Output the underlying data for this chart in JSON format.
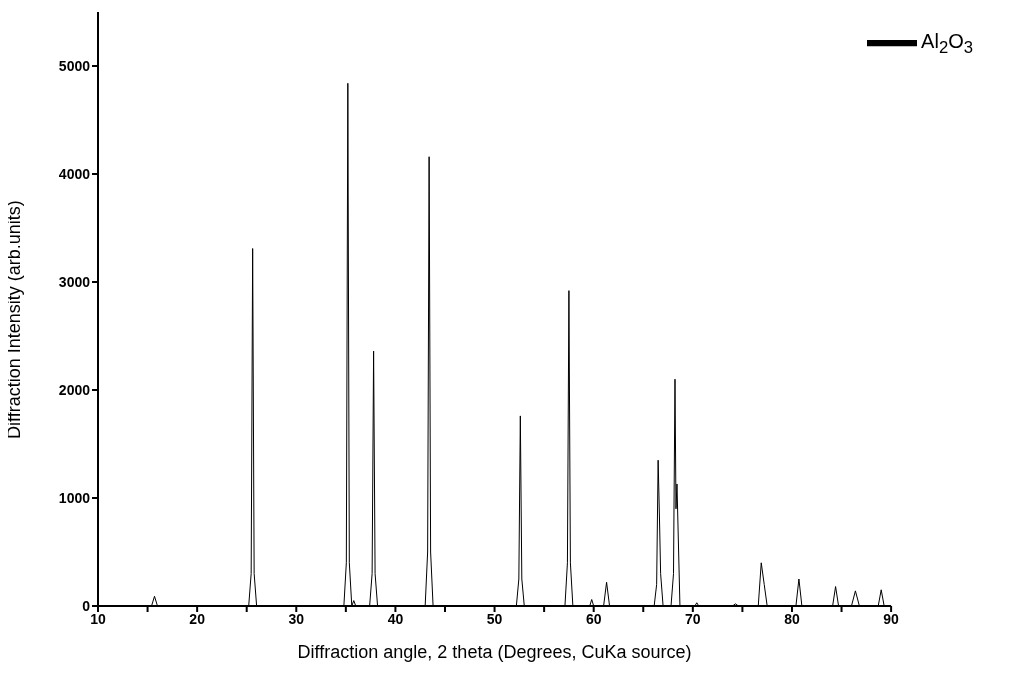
{
  "chart_data": {
    "type": "line",
    "xlabel": "Diffraction angle, 2 theta (Degrees, CuKa source)",
    "ylabel": "Diffraction Intensity (arb.units)",
    "xlim": [
      10,
      90
    ],
    "xticks": [
      10,
      {
        "value": 15,
        "label": null
      },
      20,
      {
        "value": 25,
        "label": null
      },
      30,
      {
        "value": 35,
        "label": null
      },
      40,
      {
        "value": 45,
        "label": null
      },
      50,
      {
        "value": 55,
        "label": null
      },
      60,
      {
        "value": 65,
        "label": null
      },
      70,
      {
        "value": 75,
        "label": null
      },
      80,
      {
        "value": 85,
        "label": null
      },
      90
    ],
    "ylim": [
      0,
      5500
    ],
    "yticks": [
      0,
      1000,
      2000,
      3000,
      4000,
      5000
    ],
    "legend": "top right",
    "marker": "none",
    "x": [
      10,
      15.4,
      15.7,
      16.0,
      25.2,
      25.45,
      25.6,
      25.75,
      26.0,
      34.8,
      35.05,
      35.2,
      35.35,
      35.6,
      35.8,
      36.0,
      37.4,
      37.65,
      37.8,
      37.95,
      38.2,
      43.0,
      43.25,
      43.4,
      43.55,
      43.8,
      52.2,
      52.45,
      52.6,
      52.75,
      53.0,
      57.1,
      57.35,
      57.5,
      57.65,
      57.9,
      59.6,
      59.8,
      60.0,
      61.0,
      61.3,
      61.6,
      66.1,
      66.35,
      66.5,
      66.65,
      66.75,
      67.0,
      67.8,
      68.05,
      68.2,
      68.3,
      68.4,
      68.7,
      70.2,
      70.4,
      70.6,
      74.0,
      74.3,
      74.6,
      76.6,
      76.9,
      77.2,
      77.5,
      80.4,
      80.7,
      81.0,
      84.1,
      84.4,
      84.7,
      86.0,
      86.4,
      86.8,
      88.7,
      89.0,
      89.3,
      90
    ],
    "series": [
      {
        "name": "Al$_{2}$O$_{3}$",
        "color": "#000000",
        "values": [
          0,
          0,
          90,
          0,
          0,
          300,
          3310,
          300,
          0,
          0,
          400,
          4840,
          400,
          0,
          50,
          0,
          0,
          300,
          2360,
          300,
          0,
          0,
          500,
          4160,
          500,
          0,
          0,
          250,
          1760,
          250,
          0,
          0,
          400,
          2920,
          400,
          0,
          0,
          60,
          0,
          0,
          220,
          0,
          0,
          200,
          1350,
          750,
          300,
          0,
          0,
          300,
          2100,
          900,
          1130,
          0,
          0,
          30,
          0,
          0,
          20,
          0,
          0,
          400,
          200,
          0,
          0,
          250,
          0,
          0,
          180,
          0,
          0,
          140,
          0,
          0,
          150,
          0,
          0
        ]
      }
    ]
  }
}
